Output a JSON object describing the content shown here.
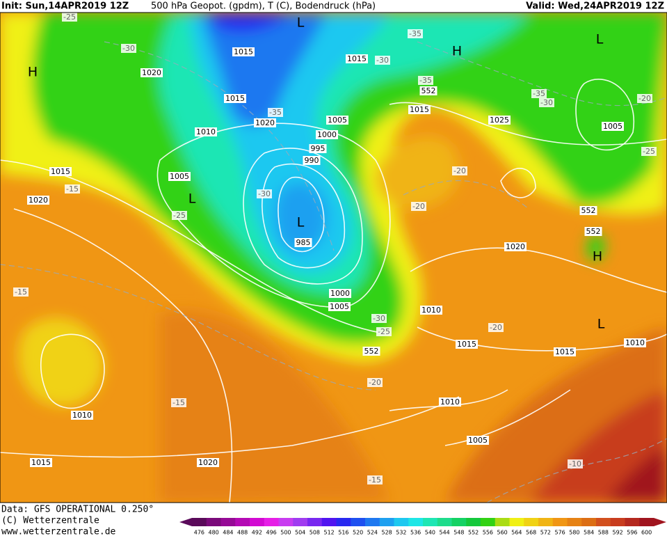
{
  "header": {
    "init": "Init: Sun,14APR2019 12Z",
    "title": "500 hPa Geopot. (gpdm), T (C), Bodendruck (hPa)",
    "valid": "Valid: Wed,24APR2019 12Z"
  },
  "footer": {
    "data": "Data: GFS OPERATIONAL 0.250°",
    "copyright": "(C) Wetterzentrale",
    "url": "www.wetterzentrale.de"
  },
  "colorbar": {
    "labels": [
      "476",
      "480",
      "484",
      "488",
      "492",
      "496",
      "500",
      "504",
      "508",
      "512",
      "516",
      "520",
      "524",
      "528",
      "532",
      "536",
      "540",
      "544",
      "548",
      "552",
      "556",
      "560",
      "564",
      "568",
      "572",
      "576",
      "580",
      "584",
      "588",
      "592",
      "596",
      "600"
    ],
    "colors": [
      "#5a0a5a",
      "#7a0a7a",
      "#960a96",
      "#b40ab4",
      "#d20ad2",
      "#e61ee6",
      "#c83cf0",
      "#a03cf0",
      "#7828f0",
      "#5014f0",
      "#2828f0",
      "#1e50f0",
      "#1e78f0",
      "#1ea0f0",
      "#1ec8f0",
      "#1ee6e6",
      "#1ee6b4",
      "#1edc8c",
      "#14d264",
      "#14c83c",
      "#32d214",
      "#aadc14",
      "#f0f014",
      "#f0d214",
      "#f0b414",
      "#f09614",
      "#e68214",
      "#dc6e14",
      "#d2501e",
      "#c83c1e",
      "#b4281e",
      "#a0141e"
    ]
  },
  "map_labels": [
    "-25",
    "-30",
    "1020",
    "H",
    "1015",
    "L",
    "1015",
    "-35",
    "1020",
    "1010",
    "1015",
    "-30",
    "-35",
    "H",
    "L",
    "-35",
    "552",
    "-35",
    "-30",
    "-20",
    "1015",
    "1025",
    "1005",
    "1000",
    "995",
    "990",
    "1005",
    "-25",
    "1015",
    "-15",
    "1020",
    "1005",
    "L",
    "-25",
    "-30",
    "L",
    "985",
    "-20",
    "-20",
    "552",
    "552",
    "H",
    "1020",
    "-15",
    "1000",
    "1005",
    "1010",
    "-30",
    "-25",
    "552",
    "L",
    "-20",
    "1015",
    "1015",
    "1010",
    "-20",
    "-15",
    "1010",
    "1010",
    "1005",
    "1015",
    "1020",
    "-10",
    "-15"
  ]
}
